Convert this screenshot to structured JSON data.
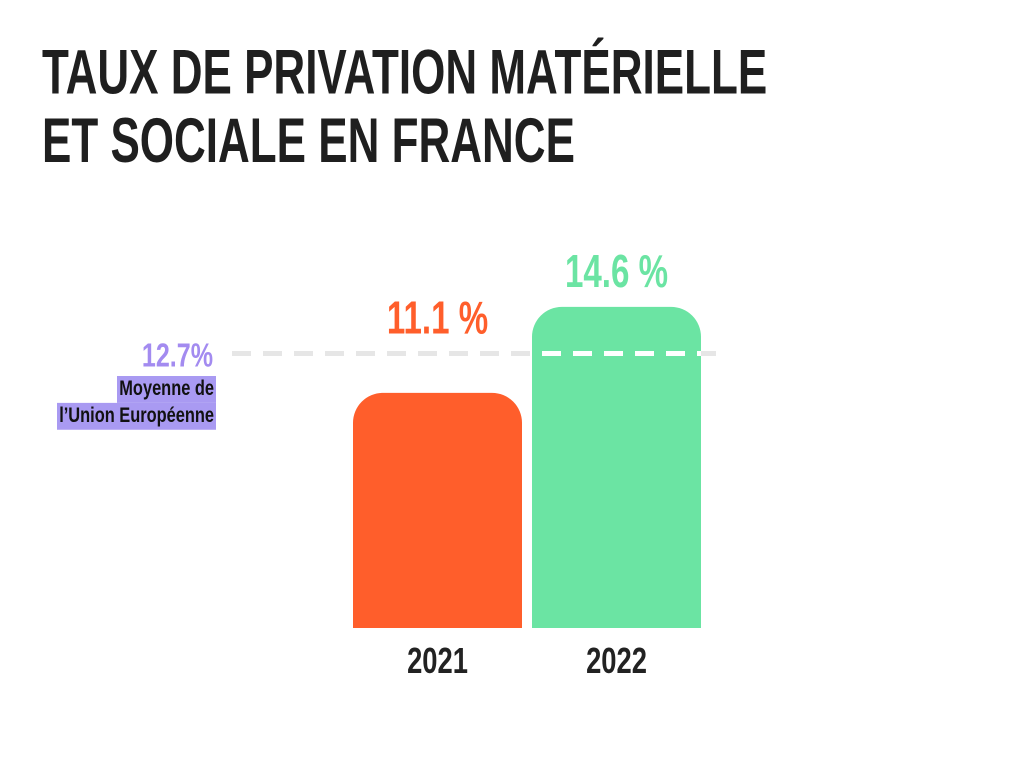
{
  "chart_data": {
    "type": "bar",
    "title": "TAUX DE PRIVATION MATÉRIELLE ET SOCIALE EN FRANCE",
    "categories": [
      "2021",
      "2022"
    ],
    "values": [
      11.1,
      14.6
    ],
    "value_labels": [
      "11.1 %",
      "14.6 %"
    ],
    "bar_colors": [
      "#FF5E2B",
      "#6BE4A3"
    ],
    "reference_line": {
      "value": 12.7,
      "value_label": "12.7%",
      "label": [
        "Moyenne de",
        "l’Union Européenne"
      ],
      "line_color": "#E6E6E6",
      "label_color": "#A38BF0",
      "highlight_color": "#A99AF2"
    },
    "grid": false
  },
  "colors": {
    "background": "#FFFFFF",
    "title": "#1F1F1F",
    "axis_labels": "#222222",
    "annotation_text": "#111111"
  }
}
